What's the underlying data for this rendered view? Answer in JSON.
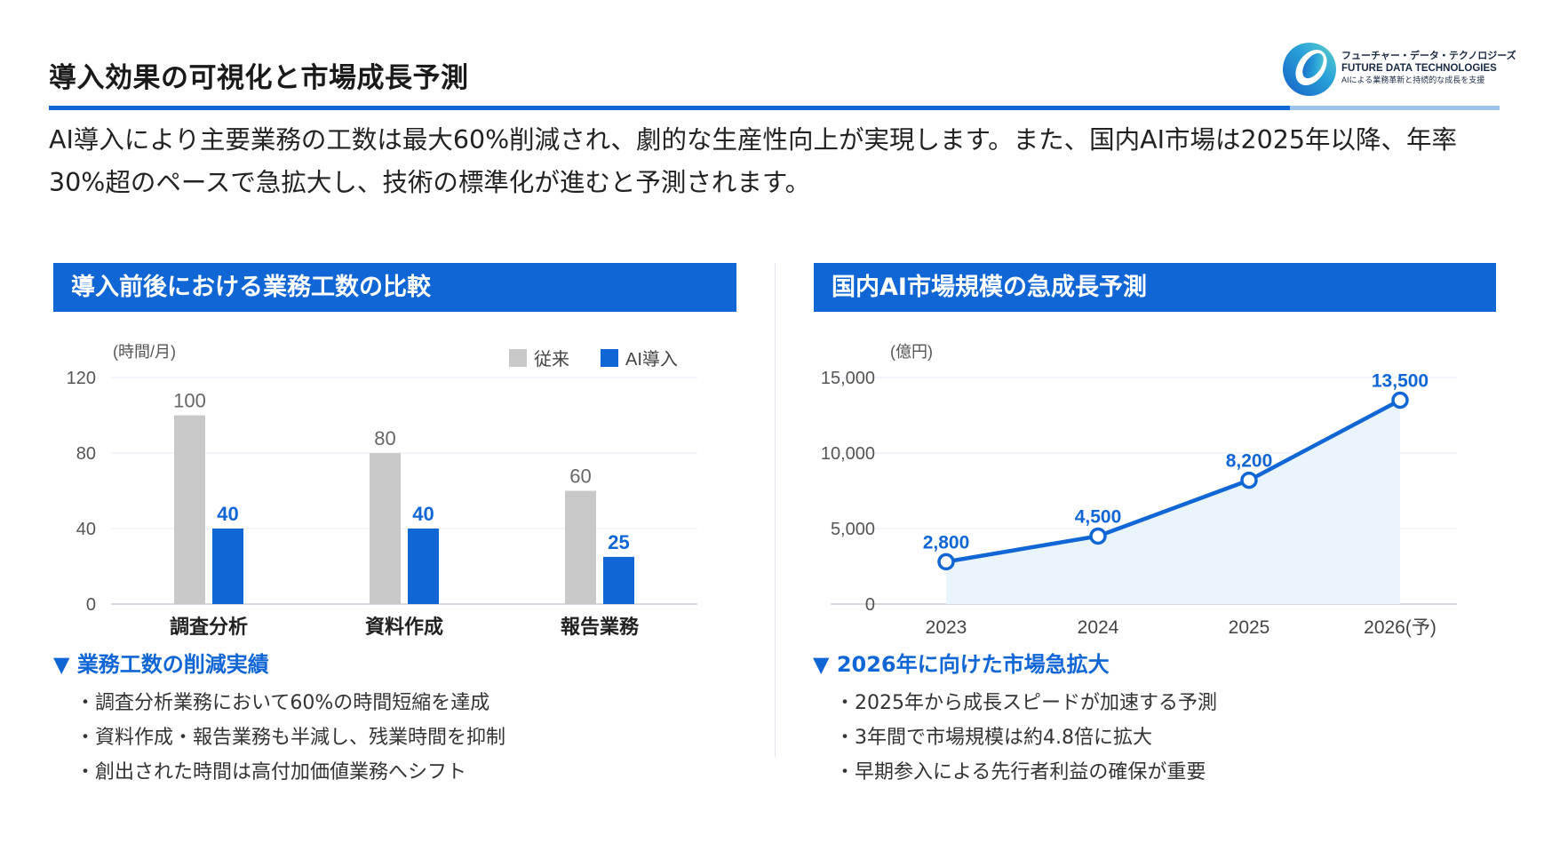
{
  "page": {
    "title": "導入効果の可視化と市場成長予測",
    "lead": "AI導入により主要業務の工数は最大60%削減され、劇的な生産性向上が実現します。また、国内AI市場は2025年以降、年率30%超のペースで急拡大し、技術の標準化が進むと予測されます。"
  },
  "logo": {
    "name_jp": "フューチャー・データ・テクノロジーズ",
    "name_en": "FUTURE DATA TECHNOLOGIES",
    "tagline": "AIによる業務革新と持続的な成長を支援"
  },
  "colors": {
    "accent": "#1166d6",
    "accent_light": "#9cc2ee",
    "bar_before": "#c8c8c8",
    "area_fill": "#eaf4fd",
    "grid": "#e6eef7"
  },
  "left_panel": {
    "header": "導入前後における業務工数の比較",
    "subheading": "▼ 業務工数の削減実績",
    "bullets": [
      "・調査分析業務において60%の時間短縮を達成",
      "・資料作成・報告業務も半減し、残業時間を抑制",
      "・創出された時間は高付加価値業務へシフト"
    ]
  },
  "right_panel": {
    "header": "国内AI市場規模の急成長予測",
    "subheading": "▼ 2026年に向けた市場急拡大",
    "bullets": [
      "・2025年から成長スピードが加速する予測",
      "・3年間で市場規模は約4.8倍に拡大",
      "・早期参入による先行者利益の確保が重要"
    ]
  },
  "chart_data": [
    {
      "type": "bar",
      "unit_label": "(時間/月)",
      "categories": [
        "調査分析",
        "資料作成",
        "報告業務"
      ],
      "series": [
        {
          "name": "従来",
          "values": [
            100,
            80,
            60
          ],
          "color": "#c8c8c8"
        },
        {
          "name": "AI導入",
          "values": [
            40,
            40,
            25
          ],
          "color": "#1166d6"
        }
      ],
      "ylim": [
        0,
        120
      ],
      "yticks": [
        0,
        40,
        80,
        120
      ],
      "ytick_labels": [
        "0",
        "40",
        "80",
        "120"
      ],
      "legend": "top-right",
      "grid": true
    },
    {
      "type": "area",
      "unit_label": "(億円)",
      "x": [
        "2023",
        "2024",
        "2025",
        "2026(予)"
      ],
      "series": [
        {
          "values": [
            2800,
            4500,
            8200,
            13500
          ],
          "color": "#1166d6"
        }
      ],
      "data_labels": [
        "2,800",
        "4,500",
        "8,200",
        "13,500"
      ],
      "ylim": [
        0,
        15000
      ],
      "yticks": [
        0,
        5000,
        10000,
        15000
      ],
      "ytick_labels": [
        "0",
        "5,000",
        "10,000",
        "15,000"
      ],
      "grid": true
    }
  ]
}
